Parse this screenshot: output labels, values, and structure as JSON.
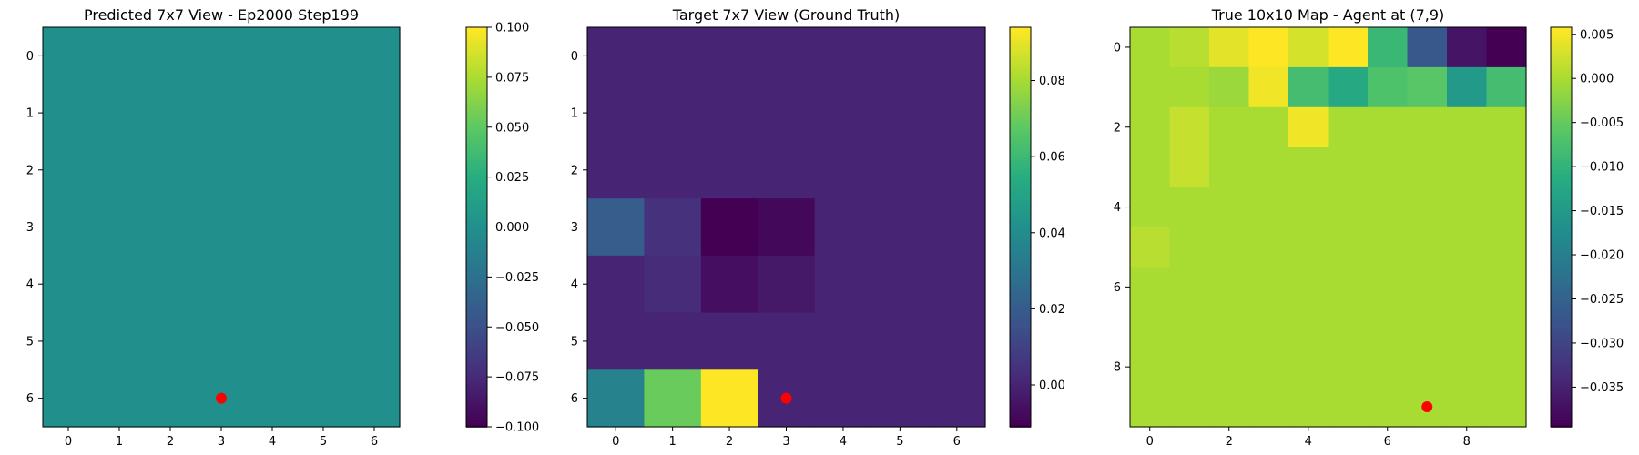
{
  "chart_data": [
    {
      "type": "heatmap",
      "title": "Predicted 7x7 View - Ep2000 Step199",
      "grid": false,
      "rows": 7,
      "cols": 7,
      "xticks": [
        0,
        1,
        2,
        3,
        4,
        5,
        6
      ],
      "yticks": [
        0,
        1,
        2,
        3,
        4,
        5,
        6
      ],
      "values": [
        [
          0,
          0,
          0,
          0,
          0,
          0,
          0
        ],
        [
          0,
          0,
          0,
          0,
          0,
          0,
          0
        ],
        [
          0,
          0,
          0,
          0,
          0,
          0,
          0
        ],
        [
          0,
          0,
          0,
          0,
          0,
          0,
          0
        ],
        [
          0,
          0,
          0,
          0,
          0,
          0,
          0
        ],
        [
          0,
          0,
          0,
          0,
          0,
          0,
          0
        ],
        [
          0,
          0,
          0,
          0,
          0,
          0,
          0
        ]
      ],
      "vmin": -0.1,
      "vmax": 0.1,
      "colorbar_ticks": [
        "0.100",
        "0.075",
        "0.050",
        "0.025",
        "0.000",
        "−0.025",
        "−0.050",
        "−0.075",
        "−0.100"
      ],
      "colorbar_tick_values": [
        0.1,
        0.075,
        0.05,
        0.025,
        0.0,
        -0.025,
        -0.05,
        -0.075,
        -0.1
      ],
      "marker": {
        "x": 3,
        "y": 6,
        "color": "#ff0000"
      }
    },
    {
      "type": "heatmap",
      "title": "Target 7x7 View (Ground Truth)",
      "grid": false,
      "rows": 7,
      "cols": 7,
      "xticks": [
        0,
        1,
        2,
        3,
        4,
        5,
        6
      ],
      "yticks": [
        0,
        1,
        2,
        3,
        4,
        5,
        6
      ],
      "values": [
        [
          0,
          0,
          0,
          0,
          0,
          0,
          0
        ],
        [
          0,
          0,
          0,
          0,
          0,
          0,
          0
        ],
        [
          0,
          0,
          0,
          0,
          0,
          0,
          0
        ],
        [
          0.02,
          0.004,
          -0.011,
          -0.009,
          0,
          0,
          0
        ],
        [
          0,
          0.002,
          -0.007,
          -0.004,
          0,
          0,
          0
        ],
        [
          0,
          0,
          0,
          0,
          0,
          0,
          0
        ],
        [
          0.036,
          0.07,
          0.094,
          0,
          0,
          0,
          0
        ]
      ],
      "vmin": -0.011,
      "vmax": 0.094,
      "colorbar_ticks": [
        "0.08",
        "0.06",
        "0.04",
        "0.02",
        "0.00"
      ],
      "colorbar_tick_values": [
        0.08,
        0.06,
        0.04,
        0.02,
        0.0
      ],
      "marker": {
        "x": 3,
        "y": 6,
        "color": "#ff0000"
      }
    },
    {
      "type": "heatmap",
      "title": "True 10x10 Map - Agent at (7,9)",
      "grid": false,
      "rows": 10,
      "cols": 10,
      "xticks": [
        0,
        2,
        4,
        6,
        8
      ],
      "yticks": [
        0,
        2,
        4,
        6,
        8
      ],
      "values": [
        [
          0.0,
          0.001,
          0.004,
          0.006,
          0.003,
          0.006,
          -0.009,
          -0.027,
          -0.037,
          -0.04
        ],
        [
          0.0,
          0.0,
          -0.001,
          0.005,
          -0.008,
          -0.012,
          -0.007,
          -0.006,
          -0.015,
          -0.008
        ],
        [
          0.0,
          0.002,
          0.0,
          0.0,
          0.005,
          0.0,
          0.0,
          0.0,
          0.0,
          0.0
        ],
        [
          0.0,
          0.002,
          0.0,
          0.0,
          0.0,
          0.0,
          0.0,
          0.0,
          0.0,
          0.0
        ],
        [
          0.0,
          0.0,
          0.0,
          0.0,
          0.0,
          0.0,
          0.0,
          0.0,
          0.0,
          0.0
        ],
        [
          0.001,
          0.0,
          0.0,
          0.0,
          0.0,
          0.0,
          0.0,
          0.0,
          0.0,
          0.0
        ],
        [
          0.0,
          0.0,
          0.0,
          0.0,
          0.0,
          0.0,
          0.0,
          0.0,
          0.0,
          0.0
        ],
        [
          0.0,
          0.0,
          0.0,
          0.0,
          0.0,
          0.0,
          0.0,
          0.0,
          0.0,
          0.0
        ],
        [
          0.0,
          0.0,
          0.0,
          0.0,
          0.0,
          0.0,
          0.0,
          0.0,
          0.0,
          0.0
        ],
        [
          0.0,
          0.0,
          0.0,
          0.0,
          0.0,
          0.0,
          0.0,
          0.0,
          0.0,
          0.0
        ]
      ],
      "vmin": -0.0395,
      "vmax": 0.0058,
      "colorbar_ticks": [
        "0.005",
        "0.000",
        "−0.005",
        "−0.010",
        "−0.015",
        "−0.020",
        "−0.025",
        "−0.030",
        "−0.035"
      ],
      "colorbar_tick_values": [
        0.005,
        0.0,
        -0.005,
        -0.01,
        -0.015,
        -0.02,
        -0.025,
        -0.03,
        -0.035
      ],
      "marker": {
        "x": 7,
        "y": 9,
        "color": "#ff0000"
      }
    }
  ]
}
